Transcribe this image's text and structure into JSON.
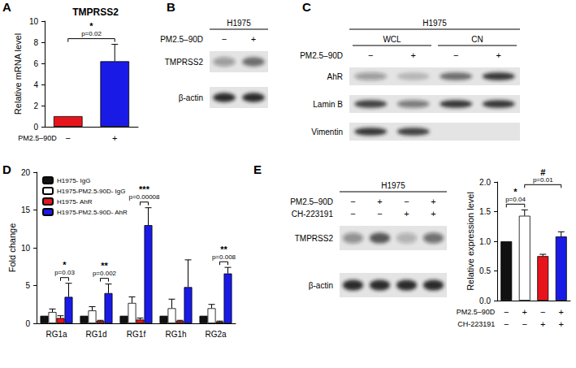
{
  "panel_labels": [
    "A",
    "B",
    "C",
    "D",
    "E"
  ],
  "chart_data": [
    {
      "type": "bar",
      "title": "TMPRSS2",
      "categories": [
        null,
        null
      ],
      "conditions": [
        {
          "name": "PM2.5–90D",
          "signs": [
            "−",
            "+"
          ]
        }
      ],
      "ylabel": "Relative mRNA level",
      "ylim": [
        0,
        10
      ],
      "yticks": [
        0,
        2,
        4,
        6,
        8,
        10
      ],
      "values": [
        1.0,
        6.2
      ],
      "errors": [
        0,
        1.6
      ],
      "colors": [
        "#e8141c",
        "#1a1ae6"
      ],
      "annotations": [
        {
          "from": 0,
          "to": 1,
          "text": "*",
          "p": "p=0.02"
        }
      ],
      "grid": false
    },
    {
      "type": "bar",
      "categories": [
        "RG1a",
        "RG1d",
        "RG1f",
        "RG1h",
        "RG2a"
      ],
      "ylabel": "Fold change",
      "ylim": [
        0,
        20
      ],
      "yticks": [
        0,
        5,
        10,
        15,
        20
      ],
      "series": [
        {
          "name": "H1975- IgG",
          "color": "#111111",
          "values": [
            1,
            1,
            1,
            1,
            1
          ],
          "errors": [
            0,
            0,
            0,
            0,
            0
          ]
        },
        {
          "name": "H1975-PM2.5-90D- IgG",
          "color": "#ffffff",
          "values": [
            1.5,
            1.7,
            2.7,
            2.0,
            2.0
          ],
          "errors": [
            0.4,
            0.5,
            0.8,
            1.2,
            0.5
          ]
        },
        {
          "name": "H1975- AhR",
          "color": "#e8141c",
          "values": [
            0.7,
            0.3,
            0.5,
            0.3,
            0.2
          ],
          "errors": [
            0.3,
            0.1,
            0.2,
            0.1,
            0.1
          ]
        },
        {
          "name": "H1975-PM2.5-90D- AhR",
          "color": "#1a1ae6",
          "values": [
            3.5,
            4.0,
            13.0,
            4.8,
            6.6
          ],
          "errors": [
            1.8,
            1.2,
            2.3,
            3.6,
            0.8
          ]
        }
      ],
      "legend": "upper left",
      "annotations": [
        {
          "category": "RG1a",
          "between": [
            "H1975- AhR",
            "H1975-PM2.5-90D- AhR"
          ],
          "text": "*",
          "p": "p=0.03"
        },
        {
          "category": "RG1d",
          "between": [
            "H1975- AhR",
            "H1975-PM2.5-90D- AhR"
          ],
          "text": "**",
          "p": "p=0.002"
        },
        {
          "category": "RG1f",
          "between": [
            "H1975- AhR",
            "H1975-PM2.5-90D- AhR"
          ],
          "text": "***",
          "p": "p=0.00008"
        },
        {
          "category": "RG2a",
          "between": [
            "H1975- AhR",
            "H1975-PM2.5-90D- AhR"
          ],
          "text": "**",
          "p": "p=0.008"
        }
      ],
      "grid": false
    },
    {
      "type": "bar",
      "categories": [
        null,
        null,
        null,
        null
      ],
      "conditions": [
        {
          "name": "PM2.5–90D",
          "signs": [
            "−",
            "+",
            "−",
            "+"
          ]
        },
        {
          "name": "CH-223191",
          "signs": [
            "−",
            "−",
            "+",
            "+"
          ]
        }
      ],
      "ylabel": "Relative expression level",
      "ylim": [
        0,
        2
      ],
      "yticks": [
        {
          "value": 0,
          "label": "0.0"
        },
        0.5,
        {
          "value": 1,
          "label": "1.0"
        },
        1.5,
        {
          "value": 2,
          "label": "2.0"
        }
      ],
      "values": [
        1.0,
        1.43,
        0.75,
        1.08
      ],
      "errors": [
        0,
        0.1,
        0.03,
        0.08
      ],
      "colors": [
        "#111111",
        "#ffffff",
        "#e8141c",
        "#1a1ae6"
      ],
      "annotations": [
        {
          "from": 0,
          "to": 1,
          "text": "*",
          "p": "p=0.04"
        },
        {
          "from": 1,
          "to": 3,
          "text": "#",
          "p": "p=0.01"
        }
      ],
      "grid": false
    }
  ],
  "blots": [
    {
      "header": "H1975",
      "conditions": [
        {
          "name": "PM2.5–90D",
          "signs": [
            "−",
            "+"
          ]
        }
      ],
      "rows": [
        {
          "label": "TMPRSS2",
          "intensity": [
            0.35,
            0.6
          ]
        },
        {
          "label": "β-actin",
          "intensity": [
            0.9,
            0.9
          ]
        }
      ]
    },
    {
      "header": "H1975",
      "groups": [
        {
          "label": "WCL",
          "lanes": 2
        },
        {
          "label": "CN",
          "lanes": 2
        }
      ],
      "conditions": [
        {
          "name": "PM2.5–90D",
          "signs": [
            "−",
            "+",
            "−",
            "+"
          ]
        }
      ],
      "rows": [
        {
          "label": "AhR",
          "intensity": [
            0.35,
            0.2,
            0.6,
            0.85
          ]
        },
        {
          "label": "Lamin B",
          "intensity": [
            0.8,
            0.5,
            0.85,
            0.85
          ]
        },
        {
          "label": "Vimentin",
          "intensity": [
            0.85,
            0.8,
            0,
            0
          ]
        }
      ]
    },
    {
      "header": "H1975",
      "conditions": [
        {
          "name": "PM2.5–90D",
          "signs": [
            "−",
            "+",
            "−",
            "+"
          ]
        },
        {
          "name": "CH-223191",
          "signs": [
            "−",
            "−",
            "+",
            "+"
          ]
        }
      ],
      "rows": [
        {
          "label": "TMPRSS2",
          "intensity": [
            0.4,
            0.7,
            0.25,
            0.55
          ]
        },
        {
          "label": "β-actin",
          "intensity": [
            0.9,
            0.9,
            0.9,
            0.9
          ]
        }
      ]
    }
  ]
}
